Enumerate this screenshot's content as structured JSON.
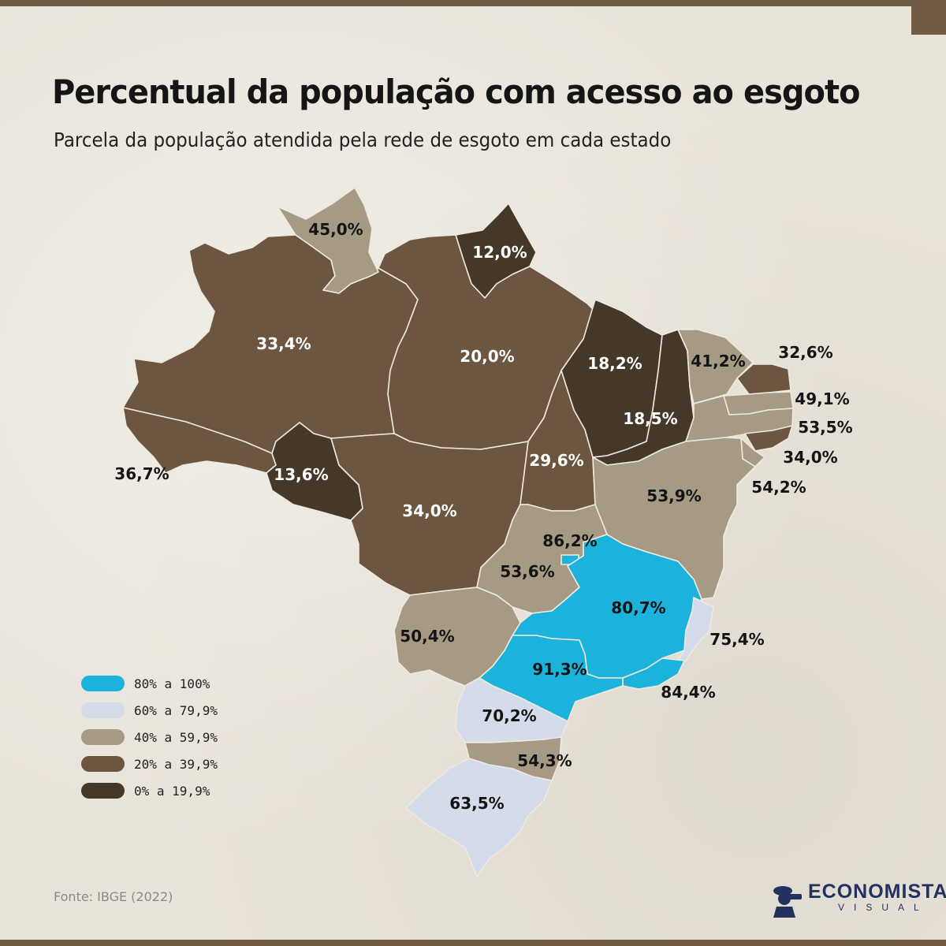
{
  "title": "Percentual da população com acesso ao esgoto",
  "subtitle": "Parcela da população atendida pela rede de esgoto em cada estado",
  "source": "Fonte: IBGE (2022)",
  "brand": {
    "name": "ECONOMISTA",
    "sub": "VISUAL"
  },
  "colors": {
    "c80": "#1bb3dc",
    "c60": "#d4dcec",
    "c40": "#a69a84",
    "c20": "#6c5641",
    "c0": "#463829",
    "label_dark": "#141414",
    "label_light": "#ffffff"
  },
  "legend": [
    {
      "label": "80% a 100%",
      "color": "#1bb3dc"
    },
    {
      "label": "60% a 79,9%",
      "color": "#d4dcec"
    },
    {
      "label": "40% a 59,9%",
      "color": "#a69a84"
    },
    {
      "label": "20% a 39,9%",
      "color": "#6c5641"
    },
    {
      "label": "0% a 19,9%",
      "color": "#463829"
    }
  ],
  "states": [
    {
      "id": "AC",
      "value": "36,7%",
      "pct": 36.7
    },
    {
      "id": "AM",
      "value": "33,4%",
      "pct": 33.4
    },
    {
      "id": "RR",
      "value": "45,0%",
      "pct": 45.0
    },
    {
      "id": "AP",
      "value": "12,0%",
      "pct": 12.0
    },
    {
      "id": "PA",
      "value": "20,0%",
      "pct": 20.0
    },
    {
      "id": "RO",
      "value": "13,6%",
      "pct": 13.6
    },
    {
      "id": "MT",
      "value": "34,0%",
      "pct": 34.0
    },
    {
      "id": "TO",
      "value": "29,6%",
      "pct": 29.6
    },
    {
      "id": "MA",
      "value": "18,2%",
      "pct": 18.2
    },
    {
      "id": "PI",
      "value": "18,5%",
      "pct": 18.5
    },
    {
      "id": "CE",
      "value": "41,2%",
      "pct": 41.2
    },
    {
      "id": "RN",
      "value": "32,6%",
      "pct": 32.6
    },
    {
      "id": "PB",
      "value": "49,1%",
      "pct": 49.1
    },
    {
      "id": "PE",
      "value": "53,5%",
      "pct": 53.5
    },
    {
      "id": "AL",
      "value": "34,0%",
      "pct": 34.0
    },
    {
      "id": "SE",
      "value": "54,2%",
      "pct": 54.2
    },
    {
      "id": "BA",
      "value": "53,9%",
      "pct": 53.9
    },
    {
      "id": "GO",
      "value": "53,6%",
      "pct": 53.6
    },
    {
      "id": "DF",
      "value": "86,2%",
      "pct": 86.2
    },
    {
      "id": "MG",
      "value": "80,7%",
      "pct": 80.7
    },
    {
      "id": "ES",
      "value": "75,4%",
      "pct": 75.4
    },
    {
      "id": "RJ",
      "value": "84,4%",
      "pct": 84.4
    },
    {
      "id": "SP",
      "value": "91,3%",
      "pct": 91.3
    },
    {
      "id": "MS",
      "value": "50,4%",
      "pct": 50.4
    },
    {
      "id": "PR",
      "value": "70,2%",
      "pct": 70.2
    },
    {
      "id": "SC",
      "value": "54,3%",
      "pct": 54.3
    },
    {
      "id": "RS",
      "value": "63,5%",
      "pct": 63.5
    }
  ]
}
